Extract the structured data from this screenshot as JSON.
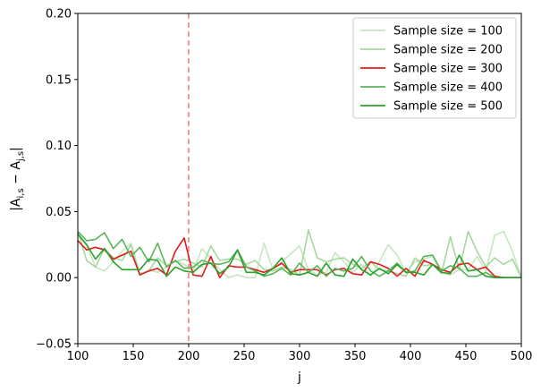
{
  "chart_data": {
    "type": "line",
    "title": "",
    "xlabel": "j",
    "ylabel_parts": [
      "|A",
      "i,s",
      " − A",
      "j,s",
      "|"
    ],
    "xlim": [
      100,
      500
    ],
    "ylim": [
      -0.05,
      0.2
    ],
    "xticks": [
      100,
      150,
      200,
      250,
      300,
      350,
      400,
      450,
      500
    ],
    "xtick_labels": [
      "100",
      "150",
      "200",
      "250",
      "300",
      "350",
      "400",
      "450",
      "500"
    ],
    "yticks": [
      -0.05,
      0.0,
      0.05,
      0.1,
      0.15,
      0.2
    ],
    "ytick_labels": [
      "−0.05",
      "0.00",
      "0.05",
      "0.10",
      "0.15",
      "0.20"
    ],
    "grid": false,
    "legend_position": "top-right",
    "vline": {
      "x": 200,
      "color": "#f08080",
      "style": "dashed"
    },
    "x": [
      100,
      108,
      116,
      124,
      132,
      140,
      148,
      156,
      164,
      172,
      180,
      188,
      196,
      204,
      212,
      220,
      228,
      236,
      244,
      252,
      260,
      268,
      276,
      284,
      292,
      300,
      308,
      316,
      324,
      332,
      340,
      348,
      356,
      364,
      372,
      380,
      388,
      396,
      404,
      412,
      420,
      428,
      436,
      444,
      452,
      460,
      468,
      476,
      484,
      492,
      500
    ],
    "series": [
      {
        "name": "Sample size = 100",
        "color": "#c7e6c1",
        "values": [
          0.033,
          0.024,
          0.008,
          0.005,
          0.012,
          0.02,
          0.026,
          0.002,
          0.006,
          0.004,
          0.008,
          0.013,
          0.01,
          0.005,
          0.022,
          0.014,
          0.006,
          0.0,
          0.002,
          0.0,
          0.0,
          0.026,
          0.006,
          0.012,
          0.018,
          0.024,
          0.006,
          0.002,
          0.004,
          0.019,
          0.012,
          0.004,
          0.01,
          0.001,
          0.012,
          0.025,
          0.017,
          0.004,
          0.012,
          0.014,
          0.016,
          0.004,
          0.002,
          0.006,
          0.006,
          0.016,
          0.005,
          0.032,
          0.035,
          0.02,
          0.0
        ]
      },
      {
        "name": "Sample size = 200",
        "color": "#a6d8a0",
        "values": [
          0.035,
          0.013,
          0.008,
          0.022,
          0.015,
          0.013,
          0.025,
          0.003,
          0.005,
          0.015,
          0.009,
          0.012,
          0.014,
          0.011,
          0.008,
          0.024,
          0.013,
          0.014,
          0.014,
          0.01,
          0.013,
          0.006,
          0.005,
          0.008,
          0.006,
          0.002,
          0.036,
          0.015,
          0.012,
          0.014,
          0.015,
          0.01,
          0.007,
          0.012,
          0.006,
          0.005,
          0.003,
          0.001,
          0.015,
          0.009,
          0.01,
          0.003,
          0.031,
          0.006,
          0.035,
          0.02,
          0.008,
          0.015,
          0.01,
          0.014,
          0.0
        ]
      },
      {
        "name": "Sample size = 300",
        "color": "#e41a1c",
        "values": [
          0.028,
          0.021,
          0.023,
          0.021,
          0.014,
          0.017,
          0.02,
          0.002,
          0.005,
          0.007,
          0.002,
          0.02,
          0.03,
          0.002,
          0.001,
          0.016,
          0.0,
          0.009,
          0.008,
          0.008,
          0.006,
          0.004,
          0.007,
          0.011,
          0.004,
          0.006,
          0.006,
          0.006,
          0.002,
          0.006,
          0.007,
          0.003,
          0.002,
          0.012,
          0.01,
          0.007,
          0.001,
          0.007,
          0.001,
          0.013,
          0.01,
          0.006,
          0.004,
          0.01,
          0.011,
          0.006,
          0.008,
          0.001,
          0.0,
          0.0,
          0.0
        ]
      },
      {
        "name": "Sample size = 400",
        "color": "#5ab55a",
        "values": [
          0.035,
          0.028,
          0.029,
          0.034,
          0.022,
          0.029,
          0.016,
          0.023,
          0.012,
          0.026,
          0.008,
          0.013,
          0.007,
          0.008,
          0.013,
          0.011,
          0.01,
          0.012,
          0.021,
          0.008,
          0.005,
          0.001,
          0.003,
          0.007,
          0.002,
          0.011,
          0.004,
          0.009,
          0.001,
          0.007,
          0.005,
          0.007,
          0.016,
          0.005,
          0.001,
          0.005,
          0.011,
          0.004,
          0.005,
          0.016,
          0.017,
          0.005,
          0.009,
          0.007,
          0.001,
          0.001,
          0.004,
          0.0,
          0.0,
          0.0,
          0.0
        ]
      },
      {
        "name": "Sample size = 500",
        "color": "#2ca02c",
        "values": [
          0.033,
          0.025,
          0.014,
          0.022,
          0.012,
          0.006,
          0.006,
          0.006,
          0.014,
          0.013,
          0.001,
          0.008,
          0.005,
          0.004,
          0.01,
          0.011,
          0.003,
          0.008,
          0.021,
          0.004,
          0.004,
          0.002,
          0.007,
          0.015,
          0.003,
          0.002,
          0.004,
          0.001,
          0.011,
          0.002,
          0.001,
          0.014,
          0.006,
          0.002,
          0.007,
          0.003,
          0.01,
          0.004,
          0.004,
          0.002,
          0.01,
          0.004,
          0.003,
          0.017,
          0.005,
          0.006,
          0.001,
          0.0,
          0.0,
          0.0,
          0.0
        ]
      }
    ]
  }
}
